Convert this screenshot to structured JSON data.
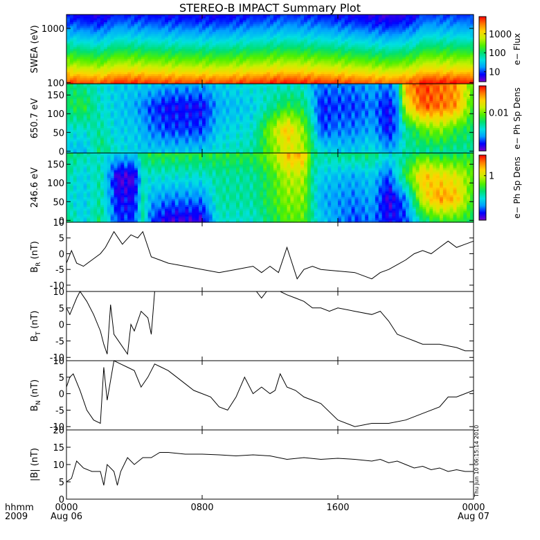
{
  "title": "STEREO-B IMPACT Summary Plot",
  "time_axis": {
    "row1_label": "hhmm",
    "row2_label": "2009",
    "ticks": [
      {
        "hour": 0,
        "label": "0000",
        "date": "Aug 06"
      },
      {
        "hour": 8,
        "label": "0800",
        "date": ""
      },
      {
        "hour": 16,
        "label": "1600",
        "date": ""
      },
      {
        "hour": 24,
        "label": "0000",
        "date": "Aug 07"
      }
    ]
  },
  "timestamp": "Thu Jun 10 06:15:14 2010",
  "colorscale": [
    "#7a00c8",
    "#0000ff",
    "#00a0ff",
    "#00e0e0",
    "#00e070",
    "#50f000",
    "#c8f000",
    "#ffd200",
    "#ff7800",
    "#ff0000"
  ],
  "chart_data": [
    {
      "type": "heatmap",
      "ylabel": "SWEA (eV)",
      "ylog": true,
      "ylim": [
        95,
        1800
      ],
      "yticks": [
        {
          "value": 100,
          "label": "100"
        },
        {
          "value": 1000,
          "label": "1000"
        }
      ],
      "colorbar": {
        "label": "e− Flux",
        "log": true,
        "range": [
          3,
          8000
        ],
        "ticks": [
          {
            "value": 10,
            "label": "10"
          },
          {
            "value": 100,
            "label": "100"
          },
          {
            "value": 1000,
            "label": "1000"
          }
        ]
      },
      "row_levels": [
        0.92,
        0.82,
        0.7,
        0.6,
        0.52,
        0.44,
        0.36,
        0.29,
        0.22,
        0.16,
        0.11,
        0.07
      ],
      "time_modulation": [
        [
          0,
          0.04
        ],
        [
          2,
          0.0
        ],
        [
          3,
          0.06
        ],
        [
          6,
          0.03
        ],
        [
          9,
          0.02
        ],
        [
          13,
          0.07
        ],
        [
          15,
          0.05
        ],
        [
          17,
          0.02
        ],
        [
          19,
          -0.02
        ],
        [
          20.5,
          0.02
        ],
        [
          21,
          0.08
        ],
        [
          24,
          0.07
        ]
      ]
    },
    {
      "type": "heatmap",
      "ylabel": "650.7 eV",
      "ylim": [
        -5,
        180
      ],
      "yticks": [
        {
          "value": 0,
          "label": "0"
        },
        {
          "value": 50,
          "label": "50"
        },
        {
          "value": 100,
          "label": "100"
        },
        {
          "value": 150,
          "label": "150"
        }
      ],
      "colorbar": {
        "label": "e− Ph Sp Dens",
        "log": true,
        "range": [
          0.0005,
          0.08
        ],
        "ticks": [
          {
            "value": 0.01,
            "label": "0.01"
          }
        ]
      },
      "columns": [
        [
          0,
          [
            0.3,
            0.35,
            0.45,
            0.45
          ]
        ],
        [
          1,
          [
            0.25,
            0.35,
            0.5,
            0.4
          ]
        ],
        [
          2,
          [
            0.45,
            0.4,
            0.35,
            0.35
          ]
        ],
        [
          3,
          [
            0.35,
            0.3,
            0.3,
            0.3
          ]
        ],
        [
          4,
          [
            0.3,
            0.3,
            0.25,
            0.3
          ]
        ],
        [
          5,
          [
            0.3,
            0.2,
            0.15,
            0.3
          ]
        ],
        [
          6,
          [
            0.3,
            0.15,
            0.1,
            0.25
          ]
        ],
        [
          8,
          [
            0.3,
            0.15,
            0.1,
            0.25
          ]
        ],
        [
          9,
          [
            0.35,
            0.3,
            0.25,
            0.3
          ]
        ],
        [
          11,
          [
            0.4,
            0.35,
            0.3,
            0.35
          ]
        ],
        [
          12,
          [
            0.55,
            0.6,
            0.4,
            0.35
          ]
        ],
        [
          13,
          [
            0.7,
            0.8,
            0.5,
            0.35
          ]
        ],
        [
          14,
          [
            0.65,
            0.6,
            0.45,
            0.35
          ]
        ],
        [
          14.5,
          [
            0.45,
            0.4,
            0.3,
            0.25
          ]
        ],
        [
          15,
          [
            0.35,
            0.15,
            0.12,
            0.2
          ]
        ],
        [
          16,
          [
            0.3,
            0.2,
            0.15,
            0.2
          ]
        ],
        [
          17,
          [
            0.3,
            0.2,
            0.15,
            0.2
          ]
        ],
        [
          18,
          [
            0.35,
            0.25,
            0.2,
            0.25
          ]
        ],
        [
          19,
          [
            0.25,
            0.1,
            0.1,
            0.2
          ]
        ],
        [
          19.5,
          [
            0.3,
            0.2,
            0.2,
            0.3
          ]
        ],
        [
          20,
          [
            0.4,
            0.4,
            0.7,
            0.85
          ]
        ],
        [
          21,
          [
            0.4,
            0.55,
            0.92,
            0.95
          ]
        ],
        [
          22,
          [
            0.4,
            0.6,
            0.9,
            0.9
          ]
        ],
        [
          23,
          [
            0.4,
            0.5,
            0.85,
            0.85
          ]
        ],
        [
          24,
          [
            0.4,
            0.45,
            0.5,
            0.55
          ]
        ]
      ]
    },
    {
      "type": "heatmap",
      "ylabel": "246.6 eV",
      "ylim": [
        -5,
        180
      ],
      "yticks": [
        {
          "value": 0,
          "label": "0"
        },
        {
          "value": 50,
          "label": "50"
        },
        {
          "value": 100,
          "label": "100"
        },
        {
          "value": 150,
          "label": "150"
        }
      ],
      "colorbar": {
        "label": "e− Ph Sp Dens",
        "log": true,
        "range": [
          0.05,
          4
        ],
        "ticks": [
          {
            "value": 1,
            "label": "1"
          }
        ]
      },
      "columns": [
        [
          0,
          [
            0.45,
            0.35,
            0.4,
            0.45
          ]
        ],
        [
          1,
          [
            0.3,
            0.3,
            0.3,
            0.4
          ]
        ],
        [
          2,
          [
            0.45,
            0.4,
            0.4,
            0.35
          ]
        ],
        [
          3,
          [
            0.15,
            0.1,
            0.05,
            0.3
          ]
        ],
        [
          4,
          [
            0.15,
            0.1,
            0.05,
            0.3
          ]
        ],
        [
          4.5,
          [
            0.4,
            0.4,
            0.35,
            0.45
          ]
        ],
        [
          5,
          [
            0.15,
            0.25,
            0.35,
            0.5
          ]
        ],
        [
          6,
          [
            0.05,
            0.2,
            0.35,
            0.5
          ]
        ],
        [
          8,
          [
            0.05,
            0.2,
            0.35,
            0.5
          ]
        ],
        [
          9,
          [
            0.35,
            0.4,
            0.4,
            0.5
          ]
        ],
        [
          11,
          [
            0.35,
            0.4,
            0.4,
            0.5
          ]
        ],
        [
          12,
          [
            0.45,
            0.5,
            0.5,
            0.6
          ]
        ],
        [
          13,
          [
            0.55,
            0.6,
            0.65,
            0.82
          ]
        ],
        [
          14,
          [
            0.55,
            0.6,
            0.65,
            0.82
          ]
        ],
        [
          14.5,
          [
            0.4,
            0.4,
            0.4,
            0.45
          ]
        ],
        [
          15,
          [
            0.3,
            0.25,
            0.3,
            0.4
          ]
        ],
        [
          17,
          [
            0.15,
            0.2,
            0.25,
            0.45
          ]
        ],
        [
          18,
          [
            0.2,
            0.25,
            0.3,
            0.45
          ]
        ],
        [
          19,
          [
            0.1,
            0.05,
            0.15,
            0.35
          ]
        ],
        [
          20,
          [
            0.15,
            0.2,
            0.5,
            0.4
          ]
        ],
        [
          21,
          [
            0.4,
            0.7,
            0.8,
            0.5
          ]
        ],
        [
          22,
          [
            0.5,
            0.85,
            0.75,
            0.45
          ]
        ],
        [
          23,
          [
            0.5,
            0.8,
            0.7,
            0.45
          ]
        ],
        [
          24,
          [
            0.45,
            0.5,
            0.55,
            0.5
          ]
        ]
      ]
    },
    {
      "type": "line",
      "ylabel": "B_R (nT)",
      "ylim": [
        -12,
        10
      ],
      "yticks": [
        {
          "value": -10,
          "label": "-10"
        },
        {
          "value": -5,
          "label": "-5"
        },
        {
          "value": 0,
          "label": "0"
        },
        {
          "value": 5,
          "label": "5"
        },
        {
          "value": 10,
          "label": "10"
        }
      ],
      "x": [
        0,
        0.3,
        0.6,
        1,
        1.5,
        2,
        2.3,
        2.8,
        3.3,
        3.8,
        4.2,
        4.5,
        5,
        5.5,
        6,
        6.5,
        7,
        8,
        9,
        10,
        11,
        11.5,
        12,
        12.5,
        13,
        13.3,
        13.6,
        14,
        14.5,
        15,
        16,
        17,
        18,
        18.5,
        19,
        20,
        20.5,
        21,
        21.5,
        22,
        22.5,
        23,
        23.5,
        24
      ],
      "y": [
        -3,
        1,
        -3,
        -4,
        -2,
        0,
        2,
        7,
        3,
        6,
        5,
        7,
        -1,
        -2,
        -3,
        -3.5,
        -4,
        -5,
        -6,
        -5,
        -4,
        -6,
        -4,
        -6,
        2,
        -3,
        -8,
        -5,
        -4,
        -5,
        -5.5,
        -6,
        -8,
        -6,
        -5,
        -2,
        0,
        1,
        0,
        2,
        4,
        2,
        3,
        4
      ]
    },
    {
      "type": "line",
      "ylabel": "B_T (nT)",
      "ylim": [
        -11,
        10
      ],
      "yticks": [
        {
          "value": -10,
          "label": "-10"
        },
        {
          "value": -5,
          "label": "-5"
        },
        {
          "value": 0,
          "label": "0"
        },
        {
          "value": 5,
          "label": "5"
        },
        {
          "value": 10,
          "label": "10"
        }
      ],
      "x": [
        0,
        0.2,
        0.6,
        0.8,
        1.2,
        1.6,
        2,
        2.2,
        2.4,
        2.6,
        2.8,
        3.2,
        3.6,
        3.8,
        4,
        4.4,
        4.8,
        5,
        5.2,
        11,
        11.2,
        11.5,
        11.8,
        12.2,
        12.6,
        13,
        13.5,
        14,
        14.5,
        15,
        15.5,
        16,
        17,
        18,
        18.5,
        19,
        19.5,
        20,
        20.5,
        21,
        22,
        23,
        23.5,
        24
      ],
      "y": [
        5,
        3,
        8,
        10,
        7,
        3,
        -2,
        -6,
        -9,
        6,
        -3,
        -6,
        -9,
        0,
        -2,
        4,
        2,
        -3,
        10,
        10,
        10,
        8,
        10,
        10,
        10,
        9,
        8,
        7,
        5,
        5,
        4,
        5,
        4,
        3,
        4,
        1,
        -3,
        -4,
        -5,
        -6,
        -6,
        -7,
        -8,
        -8
      ]
    },
    {
      "type": "line",
      "ylabel": "B_N (nT)",
      "ylim": [
        -11,
        10
      ],
      "yticks": [
        {
          "value": -10,
          "label": "-10"
        },
        {
          "value": -5,
          "label": "-5"
        },
        {
          "value": 0,
          "label": "0"
        },
        {
          "value": 5,
          "label": "5"
        },
        {
          "value": 10,
          "label": "10"
        }
      ],
      "x": [
        0,
        0.2,
        0.4,
        0.8,
        1.2,
        1.6,
        2,
        2.2,
        2.4,
        2.8,
        3.2,
        3.6,
        4,
        4.4,
        4.8,
        5.2,
        5.6,
        6,
        6.5,
        7,
        7.5,
        8,
        8.5,
        9,
        9.5,
        10,
        10.5,
        11,
        11.5,
        12,
        12.3,
        12.6,
        13,
        13.5,
        14,
        14.5,
        15,
        16,
        17,
        18,
        19,
        20,
        21,
        22,
        22.5,
        23,
        24
      ],
      "y": [
        2,
        5,
        6,
        1,
        -5,
        -8,
        -9,
        8,
        -2,
        10,
        9,
        8,
        7,
        2,
        5,
        9,
        8,
        7,
        5,
        3,
        1,
        0,
        -1,
        -4,
        -5,
        -1,
        5,
        0,
        2,
        0,
        1,
        6,
        2,
        1,
        -1,
        -2,
        -3,
        -8,
        -10,
        -9,
        -9,
        -8,
        -6,
        -4,
        -1,
        -1,
        1
      ]
    },
    {
      "type": "line",
      "ylabel": "|B| (nT)",
      "ylim": [
        0,
        20
      ],
      "yticks": [
        {
          "value": 0,
          "label": "0"
        },
        {
          "value": 5,
          "label": "5"
        },
        {
          "value": 10,
          "label": "10"
        },
        {
          "value": 15,
          "label": "15"
        },
        {
          "value": 20,
          "label": "20"
        }
      ],
      "x": [
        0,
        0.3,
        0.6,
        1,
        1.5,
        2,
        2.2,
        2.4,
        2.8,
        3,
        3.2,
        3.6,
        4,
        4.5,
        5,
        5.5,
        6,
        7,
        8,
        9,
        10,
        11,
        12,
        13,
        14,
        15,
        16,
        17,
        18,
        18.5,
        19,
        19.5,
        20,
        20.5,
        21,
        21.5,
        22,
        22.5,
        23,
        23.5,
        24
      ],
      "y": [
        5,
        6,
        11,
        9,
        8,
        8,
        4,
        10,
        8,
        4,
        8,
        12,
        10,
        12,
        12,
        13.5,
        13.5,
        13,
        13,
        12.8,
        12.5,
        12.8,
        12.5,
        11.5,
        12,
        11.5,
        11.8,
        11.5,
        11,
        11.5,
        10.5,
        11,
        10,
        9,
        9.5,
        8.5,
        9,
        8,
        8.5,
        8,
        8
      ]
    }
  ]
}
